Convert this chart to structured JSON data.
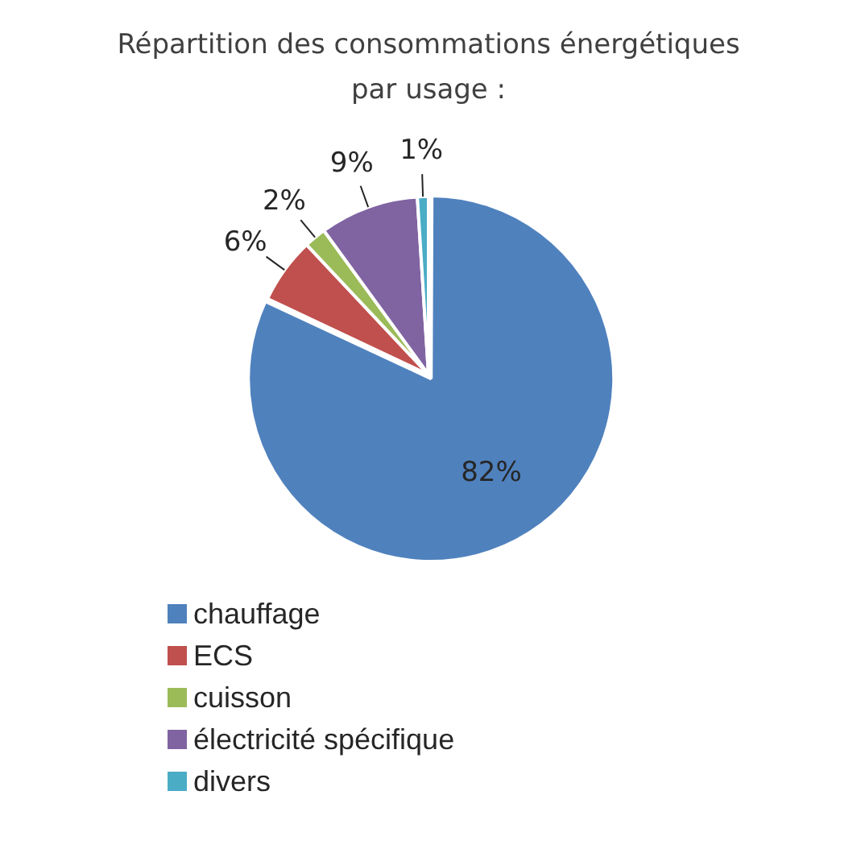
{
  "chart_data": {
    "type": "pie",
    "title": "Répartition des consommations énergétiques par usage :",
    "categories": [
      "chauffage",
      "ECS",
      "cuisson",
      "électricité spécifique",
      "divers"
    ],
    "values": [
      82,
      6,
      2,
      9,
      1
    ],
    "colors": [
      "#4f81bd",
      "#c0504d",
      "#9bbb59",
      "#8064a2",
      "#4bacc6"
    ],
    "value_labels": [
      "82%",
      "6%",
      "2%",
      "9%",
      "1%"
    ],
    "legend": "bottom"
  }
}
